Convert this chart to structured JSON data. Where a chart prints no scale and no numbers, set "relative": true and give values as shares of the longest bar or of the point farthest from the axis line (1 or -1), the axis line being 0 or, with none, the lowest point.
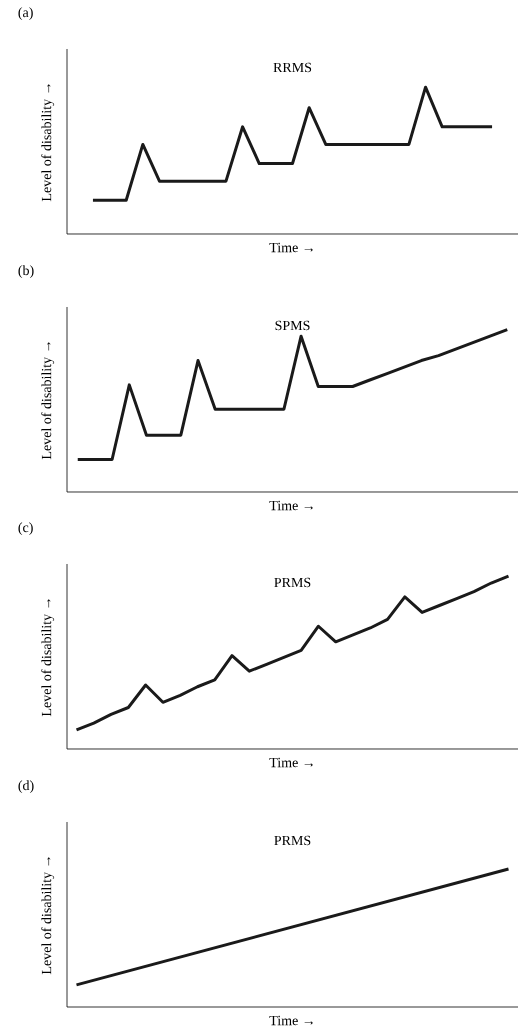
{
  "chart_data": [
    {
      "type": "line",
      "title": "(a)",
      "annotations": [
        "RRMS"
      ],
      "xlabel": "Time →",
      "ylabel": "Level of disability →",
      "relative": true,
      "categories": [
        null,
        null,
        null,
        null,
        null,
        null,
        null,
        null,
        null,
        null,
        null,
        null,
        null,
        null,
        null,
        null,
        null,
        null,
        null,
        null,
        null,
        null,
        null,
        null,
        null
      ],
      "series": [
        {
          "color": "#1a1a1a",
          "values": [
            0.23,
            0.23,
            0.23,
            0.61,
            0.36,
            0.36,
            0.36,
            0.36,
            0.36,
            0.73,
            0.48,
            0.48,
            0.48,
            0.86,
            0.61,
            0.61,
            0.61,
            0.61,
            0.61,
            0.61,
            1,
            0.73,
            0.73,
            0.73,
            0.73
          ]
        }
      ]
    },
    {
      "type": "line",
      "title": "(b)",
      "annotations": [
        "SPMS"
      ],
      "xlabel": "Time →",
      "ylabel": "Level of disability →",
      "relative": true,
      "categories": [
        null,
        null,
        null,
        null,
        null,
        null,
        null,
        null,
        null,
        null,
        null,
        null,
        null,
        null,
        null,
        null,
        null,
        null,
        null,
        null,
        null,
        null,
        null,
        null,
        null,
        null
      ],
      "series": [
        {
          "color": "#1a1a1a",
          "values": [
            0.2,
            0.2,
            0.2,
            0.66,
            0.35,
            0.35,
            0.35,
            0.81,
            0.51,
            0.51,
            0.51,
            0.51,
            0.51,
            0.96,
            0.65,
            0.65,
            0.65,
            0.69,
            0.73,
            0.77,
            0.81,
            0.84,
            0.88,
            0.92,
            0.96,
            1
          ]
        }
      ]
    },
    {
      "type": "line",
      "title": "(c)",
      "annotations": [
        "PRMS"
      ],
      "xlabel": "Time →",
      "ylabel": "Level of disability →",
      "relative": true,
      "categories": [
        null,
        null,
        null,
        null,
        null,
        null,
        null,
        null,
        null,
        null,
        null,
        null,
        null,
        null,
        null,
        null,
        null,
        null,
        null,
        null,
        null,
        null,
        null,
        null,
        null,
        null
      ],
      "series": [
        {
          "color": "#1a1a1a",
          "values": [
            0.11,
            0.15,
            0.2,
            0.24,
            0.37,
            0.27,
            0.31,
            0.36,
            0.4,
            0.54,
            0.45,
            0.49,
            0.53,
            0.57,
            0.71,
            0.62,
            0.66,
            0.7,
            0.75,
            0.88,
            0.79,
            0.83,
            0.87,
            0.91,
            0.96,
            1
          ]
        }
      ]
    },
    {
      "type": "line",
      "title": "(d)",
      "annotations": [
        "PRMS"
      ],
      "xlabel": "Time →",
      "ylabel": "Level of disability →",
      "relative": true,
      "categories": [
        null,
        null
      ],
      "series": [
        {
          "color": "#1a1a1a",
          "values": [
            0.16,
            1
          ]
        }
      ]
    }
  ]
}
